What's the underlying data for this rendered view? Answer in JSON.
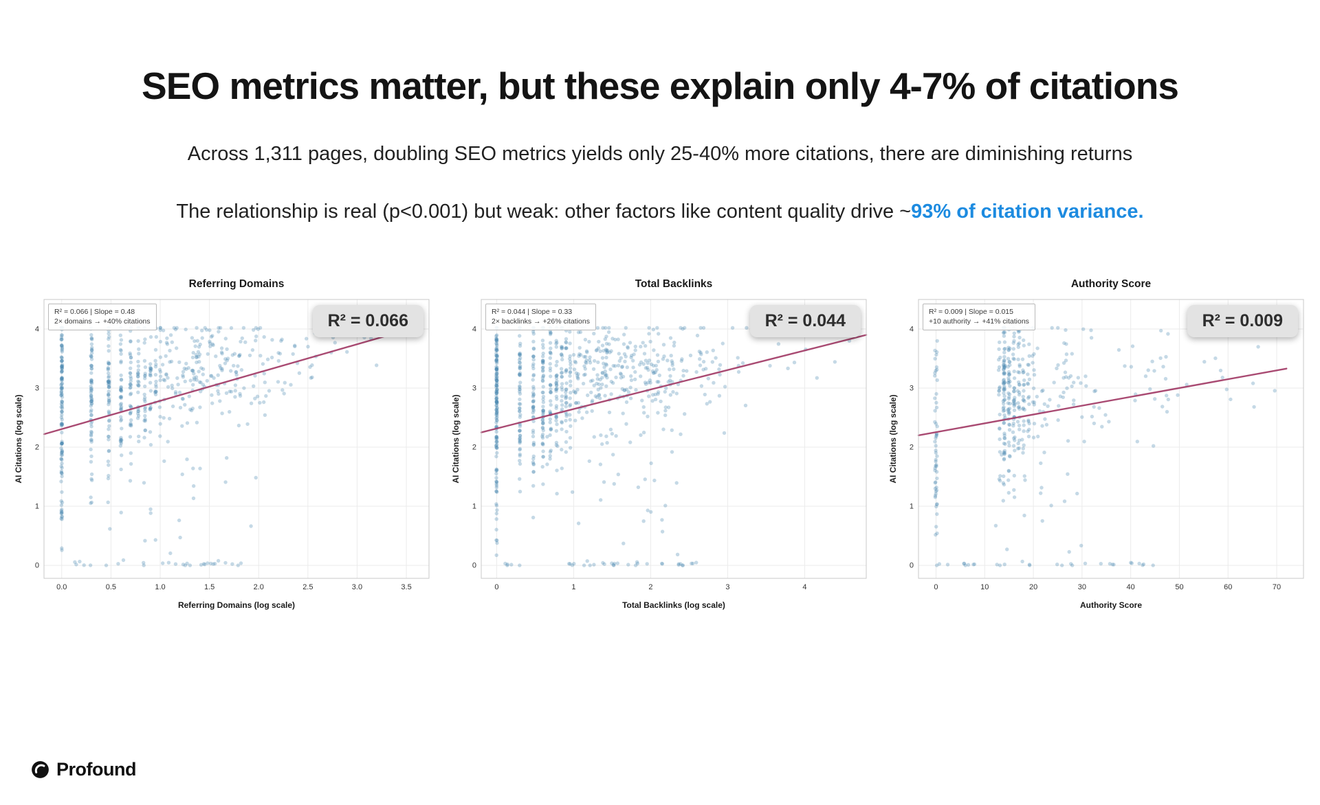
{
  "slide": {
    "title": "SEO metrics matter, but these explain only 4-7% of citations",
    "subtitle1": "Across 1,311 pages, doubling SEO metrics yields only 25-40% more citations, there are diminishing returns",
    "subtitle2_prefix": "The relationship is real (p<0.001) but weak: other factors like content quality drive ~",
    "subtitle2_highlight": "93% of citation variance.",
    "highlight_color": "#1d8be0"
  },
  "footer": {
    "brand": "Profound"
  },
  "chart_data": [
    {
      "type": "scatter",
      "title": "Referring Domains",
      "xlabel": "Referring Domains (log scale)",
      "ylabel": "AI Citations (log scale)",
      "badge": "R² = 0.066",
      "stats_line1": "R² = 0.066  |  Slope = 0.48",
      "stats_line2": "2× domains → +40% citations",
      "xlim": [
        -0.18,
        3.73
      ],
      "ylim": [
        -0.22,
        4.5
      ],
      "yclip": [
        0,
        4.02
      ],
      "xticks": [
        {
          "v": 0.0,
          "label": "0.0"
        },
        {
          "v": 0.5,
          "label": "0.5"
        },
        {
          "v": 1.0,
          "label": "1.0"
        },
        {
          "v": 1.5,
          "label": "1.5"
        },
        {
          "v": 2.0,
          "label": "2.0"
        },
        {
          "v": 2.5,
          "label": "2.5"
        },
        {
          "v": 3.0,
          "label": "3.0"
        },
        {
          "v": 3.5,
          "label": "3.5"
        }
      ],
      "yticks": [
        {
          "v": 0,
          "label": "0"
        },
        {
          "v": 1,
          "label": "1"
        },
        {
          "v": 2,
          "label": "2"
        },
        {
          "v": 3,
          "label": "3"
        },
        {
          "v": 4,
          "label": "4"
        }
      ],
      "regression": {
        "x1": -0.18,
        "y1": 2.22,
        "x2": 3.35,
        "y2": 3.91
      },
      "style": {
        "point_color": "#4a8ab0",
        "point_opacity": 0.32,
        "point_r": 2.7,
        "line_color": "#a4406a"
      },
      "seed": 7,
      "points_spec": [
        {
          "x": 0.0,
          "jx": 0.006,
          "n": 100,
          "my": 2.5,
          "sy": 1.05
        },
        {
          "x": 0.0,
          "jx": 0.006,
          "n": 35,
          "my": 3.3,
          "sy": 0.4
        },
        {
          "x": 0.301,
          "jx": 0.006,
          "n": 70,
          "my": 2.85,
          "sy": 0.85
        },
        {
          "x": 0.477,
          "jx": 0.006,
          "n": 55,
          "my": 2.95,
          "sy": 0.75
        },
        {
          "x": 0.602,
          "jx": 0.006,
          "n": 45,
          "my": 3.0,
          "sy": 0.65
        },
        {
          "x": 0.699,
          "jx": 0.006,
          "n": 38,
          "my": 3.05,
          "sy": 0.6
        },
        {
          "x": 0.778,
          "jx": 0.006,
          "n": 30,
          "my": 3.05,
          "sy": 0.6
        },
        {
          "x": 0.845,
          "jx": 0.006,
          "n": 25,
          "my": 3.1,
          "sy": 0.55
        },
        {
          "x": 0.903,
          "jx": 0.006,
          "n": 20,
          "my": 3.1,
          "sy": 0.55
        },
        {
          "x": 0.954,
          "jx": 0.006,
          "n": 16,
          "my": 3.15,
          "sy": 0.5
        },
        {
          "x": 1.0,
          "jx": 0.006,
          "n": 14,
          "my": 3.15,
          "sy": 0.5
        },
        {
          "x0": 1.02,
          "x1": 1.6,
          "n": 120,
          "my": 3.25,
          "sy": 0.45
        },
        {
          "x0": 1.6,
          "x1": 2.1,
          "n": 70,
          "my": 3.35,
          "sy": 0.42
        },
        {
          "x0": 2.1,
          "x1": 2.6,
          "n": 26,
          "my": 3.45,
          "sy": 0.38
        },
        {
          "x0": 2.6,
          "x1": 3.35,
          "n": 7,
          "my": 3.6,
          "sy": 0.3
        },
        {
          "x0": 0.3,
          "x1": 2.0,
          "n": 26,
          "my": 1.1,
          "sy": 0.65
        },
        {
          "x0": 0.02,
          "x1": 1.95,
          "n": 26,
          "my": 0.02,
          "sy": 0.02
        }
      ]
    },
    {
      "type": "scatter",
      "title": "Total Backlinks",
      "xlabel": "Total Backlinks (log scale)",
      "ylabel": "AI Citations (log scale)",
      "badge": "R² = 0.044",
      "stats_line1": "R² = 0.044  |  Slope = 0.33",
      "stats_line2": "2× backlinks → +26% citations",
      "xlim": [
        -0.2,
        4.8
      ],
      "ylim": [
        -0.22,
        4.5
      ],
      "yclip": [
        0,
        4.02
      ],
      "xticks": [
        {
          "v": 0,
          "label": "0"
        },
        {
          "v": 1,
          "label": "1"
        },
        {
          "v": 2,
          "label": "2"
        },
        {
          "v": 3,
          "label": "3"
        },
        {
          "v": 4,
          "label": "4"
        }
      ],
      "yticks": [
        {
          "v": 0,
          "label": "0"
        },
        {
          "v": 1,
          "label": "1"
        },
        {
          "v": 2,
          "label": "2"
        },
        {
          "v": 3,
          "label": "3"
        },
        {
          "v": 4,
          "label": "4"
        }
      ],
      "regression": {
        "x1": -0.2,
        "y1": 2.25,
        "x2": 4.8,
        "y2": 3.9
      },
      "style": {
        "point_color": "#4a8ab0",
        "point_opacity": 0.32,
        "point_r": 2.7,
        "line_color": "#a4406a"
      },
      "seed": 13,
      "points_spec": [
        {
          "x": 0.0,
          "jx": 0.006,
          "n": 115,
          "my": 2.45,
          "sy": 1.05
        },
        {
          "x": 0.0,
          "jx": 0.006,
          "n": 40,
          "my": 3.25,
          "sy": 0.45
        },
        {
          "x": 0.301,
          "jx": 0.006,
          "n": 65,
          "my": 2.85,
          "sy": 0.85
        },
        {
          "x": 0.477,
          "jx": 0.006,
          "n": 55,
          "my": 2.95,
          "sy": 0.8
        },
        {
          "x": 0.602,
          "jx": 0.006,
          "n": 60,
          "my": 3.0,
          "sy": 0.7
        },
        {
          "x": 0.699,
          "jx": 0.006,
          "n": 42,
          "my": 3.0,
          "sy": 0.65
        },
        {
          "x": 0.778,
          "jx": 0.006,
          "n": 36,
          "my": 3.05,
          "sy": 0.6
        },
        {
          "x": 0.845,
          "jx": 0.006,
          "n": 30,
          "my": 3.05,
          "sy": 0.6
        },
        {
          "x": 0.903,
          "jx": 0.006,
          "n": 26,
          "my": 3.1,
          "sy": 0.55
        },
        {
          "x": 0.954,
          "jx": 0.006,
          "n": 22,
          "my": 3.1,
          "sy": 0.5
        },
        {
          "x0": 1.0,
          "x1": 1.7,
          "n": 160,
          "my": 3.25,
          "sy": 0.45
        },
        {
          "x0": 1.7,
          "x1": 2.3,
          "n": 100,
          "my": 3.3,
          "sy": 0.45
        },
        {
          "x0": 2.3,
          "x1": 3.0,
          "n": 44,
          "my": 3.4,
          "sy": 0.4
        },
        {
          "x0": 3.0,
          "x1": 4.0,
          "n": 12,
          "my": 3.5,
          "sy": 0.35
        },
        {
          "x0": 4.0,
          "x1": 4.6,
          "n": 4,
          "my": 3.6,
          "sy": 0.3
        },
        {
          "x0": 0.3,
          "x1": 2.5,
          "n": 36,
          "my": 1.15,
          "sy": 0.7
        },
        {
          "x0": 0.02,
          "x1": 2.6,
          "n": 32,
          "my": 0.02,
          "sy": 0.02
        }
      ]
    },
    {
      "type": "scatter",
      "title": "Authority Score",
      "xlabel": "Authority Score",
      "ylabel": "AI Citations (log scale)",
      "badge": "R² = 0.009",
      "stats_line1": "R² = 0.009  |  Slope = 0.015",
      "stats_line2": "+10 authority → +41% citations",
      "xlim": [
        -3.6,
        75.5
      ],
      "ylim": [
        -0.22,
        4.5
      ],
      "yclip": [
        0,
        4.02
      ],
      "xticks": [
        {
          "v": 0,
          "label": "0"
        },
        {
          "v": 10,
          "label": "10"
        },
        {
          "v": 20,
          "label": "20"
        },
        {
          "v": 30,
          "label": "30"
        },
        {
          "v": 40,
          "label": "40"
        },
        {
          "v": 50,
          "label": "50"
        },
        {
          "v": 60,
          "label": "60"
        },
        {
          "v": 70,
          "label": "70"
        }
      ],
      "yticks": [
        {
          "v": 0,
          "label": "0"
        },
        {
          "v": 1,
          "label": "1"
        },
        {
          "v": 2,
          "label": "2"
        },
        {
          "v": 3,
          "label": "3"
        },
        {
          "v": 4,
          "label": "4"
        }
      ],
      "regression": {
        "x1": -3.6,
        "y1": 2.2,
        "x2": 72,
        "y2": 3.33
      },
      "style": {
        "point_color": "#4a8ab0",
        "point_opacity": 0.32,
        "point_r": 2.7,
        "line_color": "#a4406a"
      },
      "seed": 21,
      "points_spec": [
        {
          "x": 0,
          "jx": 0.25,
          "n": 55,
          "my": 2.3,
          "sy": 1.05
        },
        {
          "x": 13,
          "jx": 0.2,
          "n": 18,
          "my": 2.8,
          "sy": 0.9
        },
        {
          "x": 14,
          "jx": 0.2,
          "n": 55,
          "my": 2.9,
          "sy": 0.85
        },
        {
          "x": 14,
          "jx": 0.2,
          "n": 25,
          "my": 3.3,
          "sy": 0.4
        },
        {
          "x": 15,
          "jx": 0.2,
          "n": 45,
          "my": 2.95,
          "sy": 0.8
        },
        {
          "x": 16,
          "jx": 0.2,
          "n": 38,
          "my": 3.0,
          "sy": 0.75
        },
        {
          "x": 17,
          "jx": 0.2,
          "n": 30,
          "my": 3.0,
          "sy": 0.7
        },
        {
          "x": 18,
          "jx": 0.2,
          "n": 24,
          "my": 3.05,
          "sy": 0.65
        },
        {
          "x": 19,
          "jx": 0.2,
          "n": 18,
          "my": 3.05,
          "sy": 0.6
        },
        {
          "x": 20,
          "jx": 0.2,
          "n": 14,
          "my": 3.1,
          "sy": 0.6
        },
        {
          "x0": 20.5,
          "x1": 33,
          "n": 55,
          "my": 3.1,
          "sy": 0.55
        },
        {
          "x0": 33,
          "x1": 48,
          "n": 28,
          "my": 3.2,
          "sy": 0.5
        },
        {
          "x0": 48,
          "x1": 72,
          "n": 14,
          "my": 3.3,
          "sy": 0.45
        },
        {
          "x0": 12,
          "x1": 30,
          "n": 22,
          "my": 1.1,
          "sy": 0.65
        },
        {
          "x0": 0,
          "x1": 45,
          "n": 28,
          "my": 0.02,
          "sy": 0.02
        }
      ]
    }
  ]
}
